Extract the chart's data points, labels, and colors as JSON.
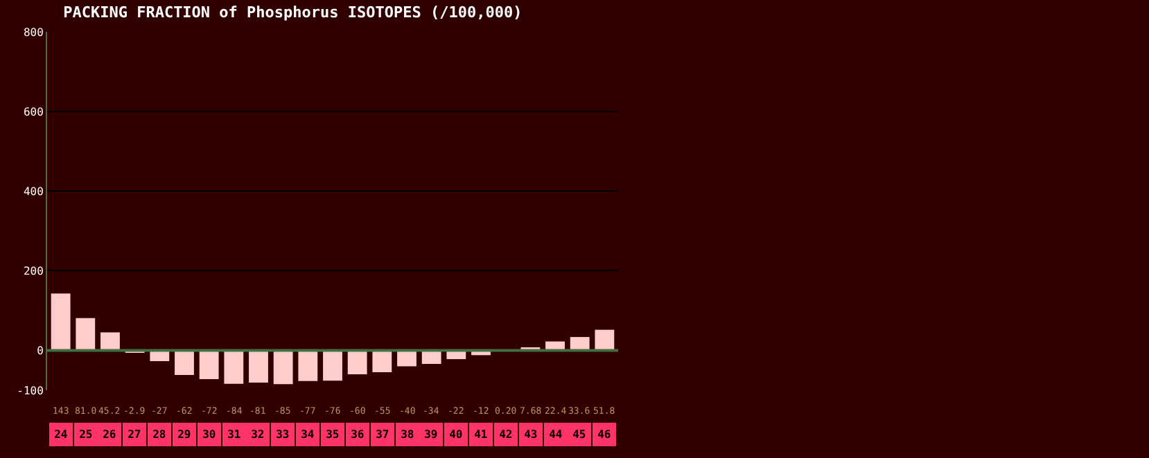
{
  "chart_data": {
    "type": "bar",
    "title": "PACKING FRACTION of Phosphorus ISOTOPES (/100,000)",
    "categories": [
      "24",
      "25",
      "26",
      "27",
      "28",
      "29",
      "30",
      "31",
      "32",
      "33",
      "34",
      "35",
      "36",
      "37",
      "38",
      "39",
      "40",
      "41",
      "42",
      "43",
      "44",
      "45",
      "46"
    ],
    "values": [
      143,
      81.0,
      45.2,
      -2.9,
      -27,
      -62,
      -72,
      -84,
      -81,
      -85,
      -77,
      -76,
      -60,
      -55,
      -40,
      -34,
      -22,
      -12,
      0.2,
      7.68,
      22.4,
      33.6,
      51.8
    ],
    "value_labels": [
      "143",
      "81.0",
      "45.2",
      "-2.9",
      "-27",
      "-62",
      "-72",
      "-84",
      "-81",
      "-85",
      "-77",
      "-76",
      "-60",
      "-55",
      "-40",
      "-34",
      "-22",
      "-12",
      "0.20",
      "7.68",
      "22.4",
      "33.6",
      "51.8"
    ],
    "color": "#ffcccc",
    "ylim": [
      -100,
      800
    ],
    "yticks": [
      -100,
      0,
      200,
      400,
      600,
      800
    ],
    "grid": "y",
    "legend": false,
    "ref_lines": [
      {
        "axis": "y",
        "value": 0,
        "color": "#407040"
      }
    ]
  }
}
